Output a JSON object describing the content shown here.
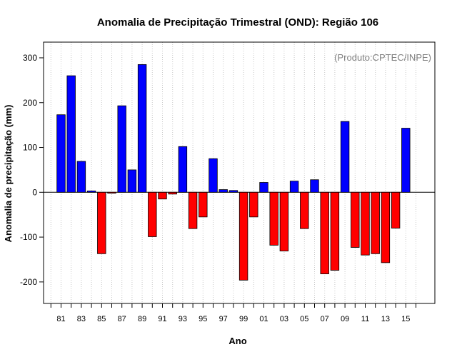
{
  "chart_data": {
    "type": "bar",
    "title": "Anomalia de Precipitação Trimestral (OND): Região 106",
    "xlabel": "Ano",
    "ylabel": "Anomalia de precipitação (mm)",
    "annotation": "(Produto:CPTEC/INPE)",
    "ylim": [
      -248,
      335
    ],
    "yticks": [
      -200,
      -100,
      0,
      100,
      200,
      300
    ],
    "grid": true,
    "categories": [
      "81",
      "82",
      "83",
      "84",
      "85",
      "86",
      "87",
      "88",
      "89",
      "90",
      "91",
      "92",
      "93",
      "94",
      "95",
      "96",
      "97",
      "98",
      "99",
      "00",
      "01",
      "02",
      "03",
      "04",
      "05",
      "06",
      "07",
      "08",
      "09",
      "10",
      "11",
      "12",
      "13",
      "14",
      "15"
    ],
    "xtick_labels": [
      "81",
      "83",
      "85",
      "87",
      "89",
      "91",
      "93",
      "95",
      "97",
      "99",
      "01",
      "03",
      "05",
      "07",
      "09",
      "11",
      "13",
      "15"
    ],
    "values": [
      173,
      260,
      69,
      3,
      -137,
      -2,
      193,
      50,
      285,
      -99,
      -15,
      -4,
      102,
      -81,
      -55,
      75,
      6,
      4,
      -196,
      -55,
      22,
      -118,
      -131,
      25,
      -81,
      28,
      -182,
      -174,
      158,
      -123,
      -140,
      -137,
      -157,
      -80,
      143
    ],
    "colors": {
      "positive": "#0000ff",
      "negative": "#ff0000"
    }
  }
}
